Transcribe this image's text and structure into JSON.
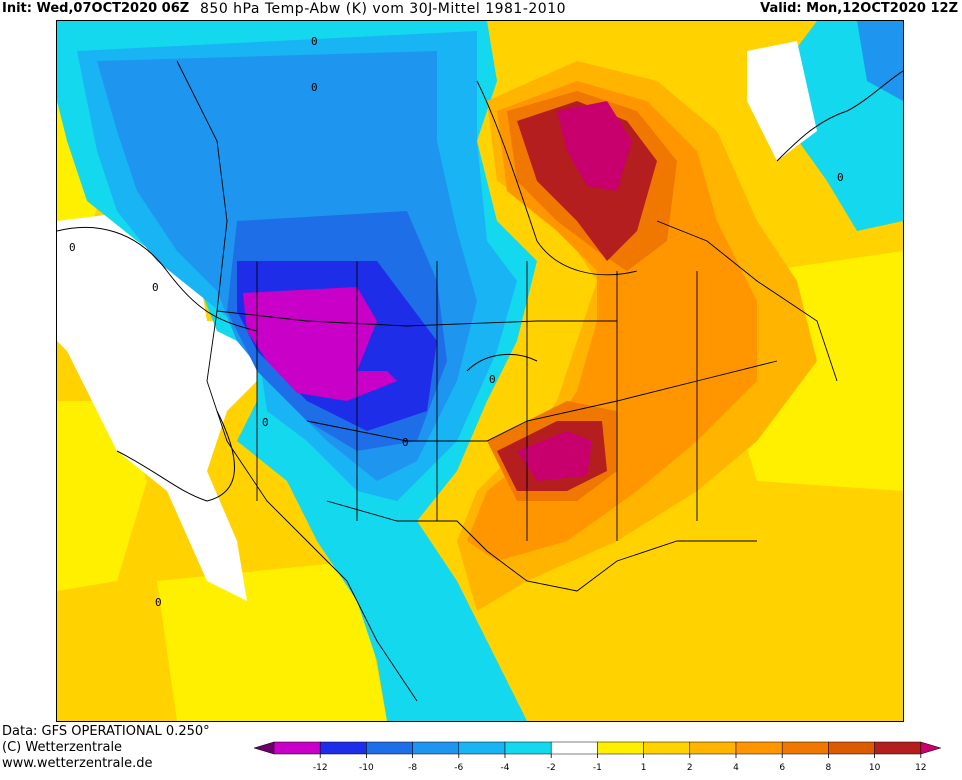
{
  "header": {
    "init": "Init: Wed,07OCT2020 06Z",
    "title": "850 hPa Temp-Abw (K) vom 30J-Mittel 1981-2010",
    "valid": "Valid: Mon,12OCT2020 12Z"
  },
  "footer": {
    "data": "Data: GFS OPERATIONAL 0.250°",
    "copyright": "(C) Wetterzentrale",
    "url": "www.wetterzentrale.de"
  },
  "contour_label": "0",
  "legend": {
    "bins": [
      {
        "color": "#6a0068"
      },
      {
        "color": "#c800c8"
      },
      {
        "color": "#1e2ee8"
      },
      {
        "color": "#1e6ee8"
      },
      {
        "color": "#1e96f0"
      },
      {
        "color": "#18b4f4"
      },
      {
        "color": "#14d8ee"
      },
      {
        "color": "#ffffff"
      },
      {
        "color": "#fff000"
      },
      {
        "color": "#ffd200"
      },
      {
        "color": "#ffb400"
      },
      {
        "color": "#ff9600"
      },
      {
        "color": "#f07800"
      },
      {
        "color": "#dc5a00"
      },
      {
        "color": "#b41e1e"
      },
      {
        "color": "#c8006e"
      }
    ],
    "ticks": [
      "-12",
      "-10",
      "-8",
      "-6",
      "-4",
      "-2",
      "-1",
      "1",
      "2",
      "4",
      "6",
      "8",
      "10",
      "12"
    ]
  }
}
